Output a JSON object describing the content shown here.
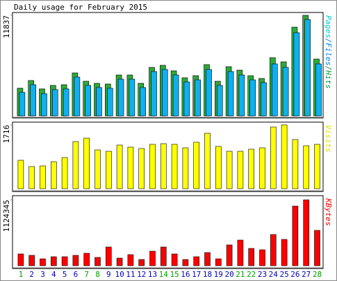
{
  "chart_data": [
    {
      "type": "bar",
      "title": "Daily usage for February 2015",
      "legend": [
        {
          "name": "Pages",
          "color": "#00c8c8"
        },
        {
          "name": "Files",
          "color": "#0080ff"
        },
        {
          "name": "Hits",
          "color": "#00a040"
        }
      ],
      "legend_separator": "/",
      "series": [
        {
          "name": "Hits",
          "color": "#2ea83a",
          "values": [
            3264,
            4162,
            3182,
            3590,
            3672,
            5059,
            4080,
            3835,
            3754,
            4814,
            4814,
            3835,
            5712,
            5957,
            5304,
            4488,
            4733,
            6038,
            4080,
            5794,
            5386,
            4733,
            4406,
            6854,
            6365,
            10445,
            11837,
            6691
          ]
        },
        {
          "name": "Files",
          "color": "#10b0f0",
          "values": [
            3019,
            3917,
            2856,
            3345,
            3427,
            4814,
            3835,
            3590,
            3509,
            4570,
            4570,
            3590,
            5467,
            5712,
            5059,
            4243,
            4488,
            5712,
            3835,
            5467,
            5059,
            4488,
            4162,
            6365,
            5957,
            10037,
            11592,
            6365
          ]
        }
      ],
      "ylim": [
        0,
        11837
      ],
      "yticks": [
        11837
      ]
    },
    {
      "type": "bar",
      "legend": [
        {
          "name": "Visits",
          "color": "#e0e000"
        }
      ],
      "series": [
        {
          "name": "Visits",
          "color": "#ffff00",
          "values": [
            765,
            597,
            615,
            727,
            839,
            1268,
            1361,
            1044,
            1007,
            1175,
            1119,
            1082,
            1194,
            1212,
            1194,
            1100,
            1250,
            1492,
            1138,
            1007,
            1007,
            1063,
            1100,
            1660,
            1716,
            1324,
            1156,
            1194
          ]
        }
      ],
      "ylim": [
        0,
        1716
      ],
      "yticks": [
        1716
      ]
    },
    {
      "type": "bar",
      "legend": [
        {
          "name": "KBytes",
          "color": "#ff0000"
        }
      ],
      "series": [
        {
          "name": "KBytes",
          "color": "#ff0000",
          "values": [
            201195,
            177525,
            118350,
            153855,
            153855,
            177525,
            213030,
            142020,
            319545,
            130185,
            189360,
            106515,
            248535,
            319545,
            201195,
            106515,
            153855,
            224865,
            118350,
            355050,
            437895,
            295875,
            272205,
            532575,
            449730,
            1017810,
            1124345,
            603585
          ]
        }
      ],
      "ylim": [
        0,
        1124345
      ],
      "yticks": [
        1124345
      ],
      "categories": [
        "1",
        "2",
        "3",
        "4",
        "5",
        "6",
        "7",
        "8",
        "9",
        "10",
        "11",
        "12",
        "13",
        "14",
        "15",
        "16",
        "17",
        "18",
        "19",
        "20",
        "21",
        "22",
        "23",
        "24",
        "25",
        "26",
        "27",
        "28"
      ],
      "category_colors": [
        "#00a000",
        "#0000c0",
        "#0000c0",
        "#0000c0",
        "#0000c0",
        "#0000c0",
        "#00a000",
        "#00a000",
        "#0000c0",
        "#0000c0",
        "#0000c0",
        "#0000c0",
        "#0000c0",
        "#00a000",
        "#00a000",
        "#0000c0",
        "#0000c0",
        "#0000c0",
        "#0000c0",
        "#0000c0",
        "#00a000",
        "#00a000",
        "#0000c0",
        "#0000c0",
        "#0000c0",
        "#0000c0",
        "#0000c0",
        "#00a000"
      ]
    }
  ]
}
